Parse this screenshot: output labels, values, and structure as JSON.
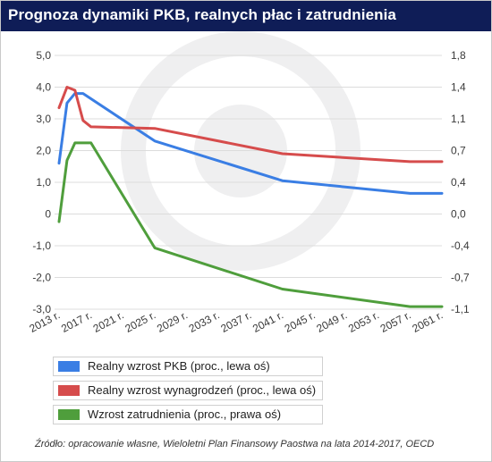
{
  "title": "Prognoza dynamiki PKB, realnych płac i zatrudnienia",
  "source": "Źródło: opracowanie własne, Wieloletni Plan Finansowy Paostwa na lata 2014-2017, OECD",
  "colors": {
    "title_bg": "#0f1d57",
    "pkb": "#3a7ee4",
    "wages": "#d64c4c",
    "employment": "#4f9e3c",
    "watermark": "#efeff0"
  },
  "chart_data": {
    "type": "line",
    "title": "Prognoza dynamiki PKB, realnych płac i zatrudnienia",
    "x_tick_labels": [
      "2013 r.",
      "2017 r.",
      "2021 r.",
      "2025 r.",
      "2029 r.",
      "2033 r.",
      "2037 r.",
      "2041 r.",
      "2045 r.",
      "2049 r.",
      "2053 r.",
      "2057 r.",
      "2061 r."
    ],
    "y_left": {
      "ticks": [
        "5,0",
        "4,0",
        "3,0",
        "2,0",
        "1,0",
        "0",
        "-1,0",
        "-2,0",
        "-3,0"
      ],
      "range": [
        -3,
        5
      ]
    },
    "y_right": {
      "ticks": [
        "1,8",
        "1,4",
        "1,1",
        "0,7",
        "0,4",
        "0,0",
        "-0,4",
        "-0,7",
        "-1,1"
      ],
      "range": [
        -1.1,
        1.8
      ]
    },
    "grid": true,
    "legend_position": "bottom-left",
    "series": [
      {
        "name": "Realny wzrost PKB (proc., lewa oś)",
        "axis": "left",
        "color": "#3a7ee4",
        "points": [
          [
            2013,
            1.6
          ],
          [
            2014,
            3.5
          ],
          [
            2015,
            3.8
          ],
          [
            2016,
            3.8
          ],
          [
            2025,
            2.3
          ],
          [
            2041,
            1.05
          ],
          [
            2057,
            0.65
          ],
          [
            2061,
            0.65
          ]
        ]
      },
      {
        "name": "Realny wzrost wynagrodzeń (proc., lewa oś)",
        "axis": "left",
        "color": "#d64c4c",
        "points": [
          [
            2013,
            3.35
          ],
          [
            2014,
            4.0
          ],
          [
            2015,
            3.9
          ],
          [
            2016,
            2.95
          ],
          [
            2017,
            2.75
          ],
          [
            2025,
            2.7
          ],
          [
            2041,
            1.9
          ],
          [
            2057,
            1.65
          ],
          [
            2061,
            1.65
          ]
        ]
      },
      {
        "name": "Wzrost zatrudnienia (proc., prawa oś)",
        "axis": "right",
        "color": "#4f9e3c",
        "points": [
          [
            2013,
            -0.1
          ],
          [
            2014,
            0.6
          ],
          [
            2015,
            0.8
          ],
          [
            2017,
            0.8
          ],
          [
            2025,
            -0.4
          ],
          [
            2041,
            -0.87
          ],
          [
            2057,
            -1.07
          ],
          [
            2061,
            -1.07
          ]
        ]
      }
    ]
  }
}
